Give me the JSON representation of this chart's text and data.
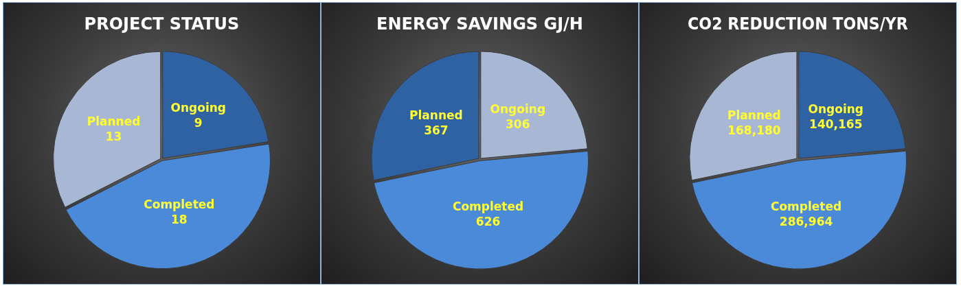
{
  "chart_data": [
    {
      "type": "pie",
      "title": "PROJECT STATUS",
      "categories": [
        "Ongoing",
        "Completed",
        "Planned"
      ],
      "values": [
        9,
        18,
        13
      ],
      "colors": [
        "#2f62a3",
        "#4a8ad8",
        "#a8b8d4"
      ],
      "data_labels": true,
      "legend": false
    },
    {
      "type": "pie",
      "title": "ENERGY SAVINGS GJ/H",
      "categories": [
        "Ongoing",
        "Completed",
        "Planned"
      ],
      "values": [
        306,
        626,
        367
      ],
      "colors": [
        "#a8b8d4",
        "#4a8ad8",
        "#2f62a3"
      ],
      "data_labels": true,
      "legend": false
    },
    {
      "type": "pie",
      "title": "CO2 REDUCTION TONS/YR",
      "categories": [
        "Ongoing",
        "Completed",
        "Planned"
      ],
      "values": [
        140165,
        286964,
        168180
      ],
      "value_labels": [
        "140,165",
        "286,964",
        "168,180"
      ],
      "colors": [
        "#2f62a3",
        "#4a8ad8",
        "#a8b8d4"
      ],
      "legend": false
    }
  ]
}
